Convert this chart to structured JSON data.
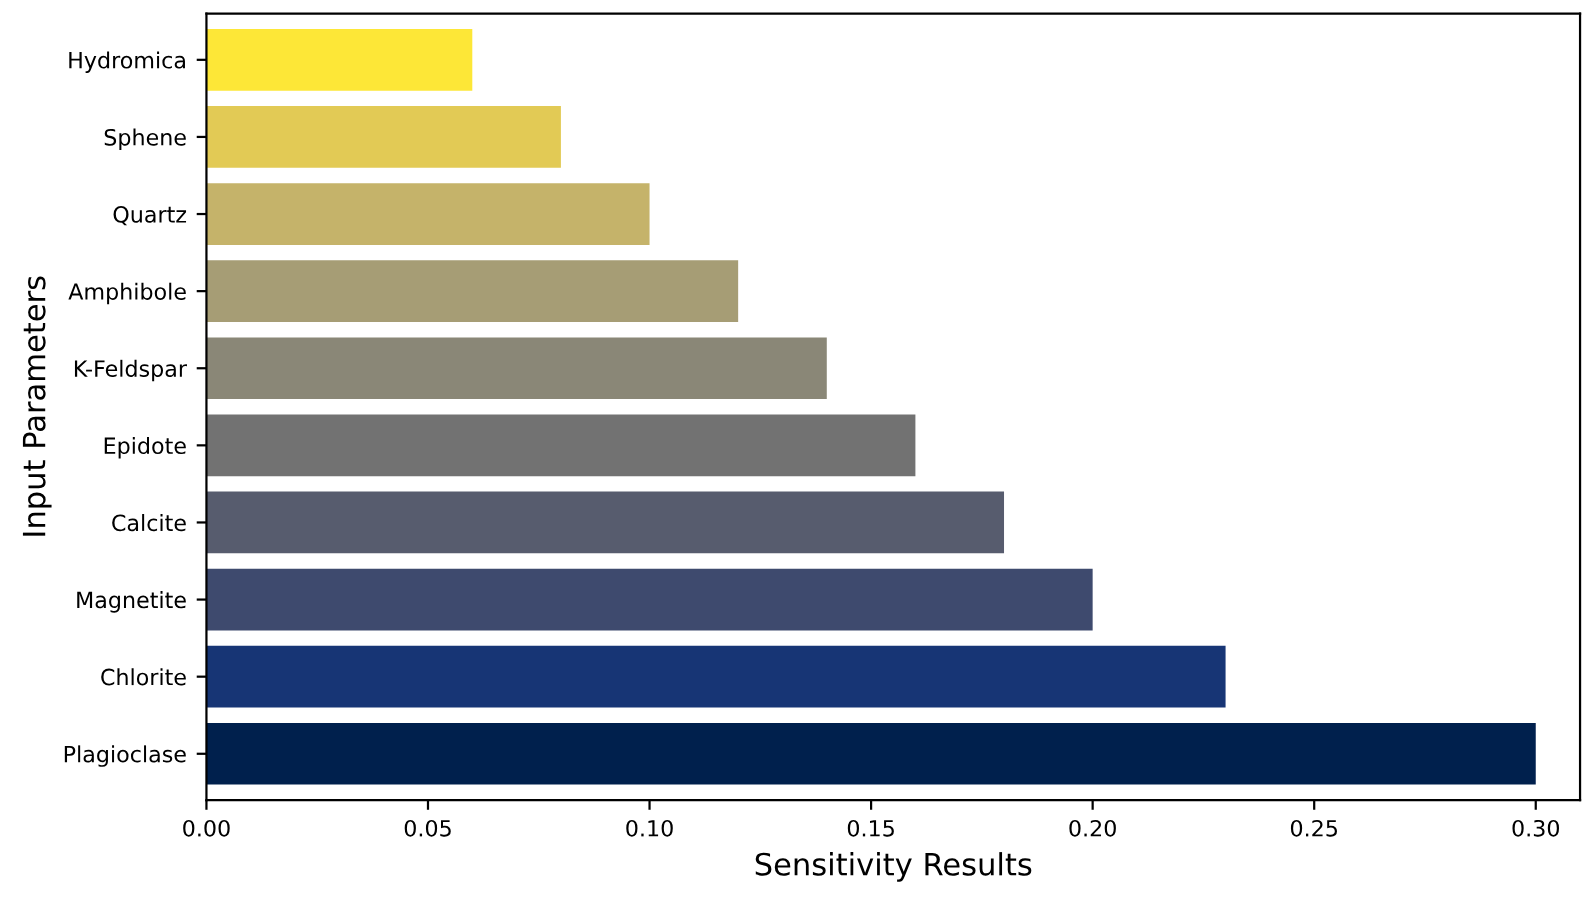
{
  "chart_data": {
    "type": "bar",
    "orientation": "horizontal",
    "xlabel": "Sensitivity Results",
    "ylabel": "Input Parameters",
    "categories": [
      "Hydromica",
      "Sphene",
      "Quartz",
      "Amphibole",
      "K-Feldspar",
      "Epidote",
      "Calcite",
      "Magnetite",
      "Chlorite",
      "Plagioclase"
    ],
    "values": [
      0.06,
      0.08,
      0.1,
      0.12,
      0.14,
      0.16,
      0.18,
      0.2,
      0.23,
      0.3
    ],
    "colors": [
      "#fde737",
      "#e2ca55",
      "#c5b36a",
      "#a69d75",
      "#8a8777",
      "#727272",
      "#575c6e",
      "#3e4a6e",
      "#173575",
      "#00204d"
    ],
    "xlim": [
      0,
      0.31
    ],
    "xticks": [
      {
        "value": 0,
        "label": "0.00"
      },
      {
        "value": 0.05,
        "label": "0.05"
      },
      {
        "value": 0.1,
        "label": "0.10"
      },
      {
        "value": 0.15,
        "label": "0.15"
      },
      {
        "value": 0.2,
        "label": "0.20"
      },
      {
        "value": 0.25,
        "label": "0.25"
      },
      {
        "value": 0.3,
        "label": "0.30"
      }
    ],
    "grid": false,
    "legend": false
  }
}
